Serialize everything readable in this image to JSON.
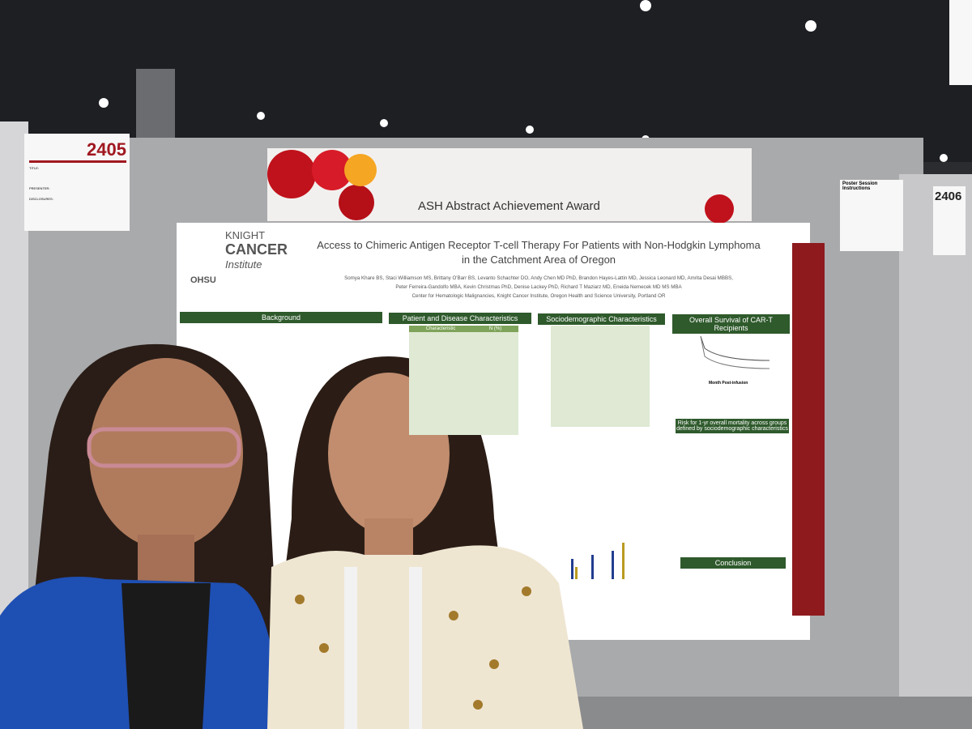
{
  "board_left": {
    "number": "2405",
    "labels": [
      "TITLE:",
      "PRESENTER:",
      "DISCLOSURES:"
    ]
  },
  "banner": {
    "title": "ASH Abstract Achievement Award"
  },
  "poster": {
    "logo": {
      "line1": "KNIGHT",
      "line2": "CANCER",
      "line3": "Institute",
      "org": "OHSU"
    },
    "title": [
      "Access to Chimeric Antigen Receptor T-cell Therapy For Patients with Non-Hodgkin Lymphoma",
      "in the Catchment Area of Oregon"
    ],
    "authors": [
      "Somya Khare BS, Staci Williamson MS, Brittany O'Barr BS, Levanto Schachter DO, Andy Chen MD PhD, Brandon Hayes-Lattin MD, Jessica Leonard MD, Amrita Desai MBBS,",
      "Peter Ferreira-Gandolfo MBA, Kevin Christmas PhD, Denise Lackey PhD, Richard T Maziarz MD, Eneida Nemecek MD MS MBA"
    ],
    "affiliation": "Center for Hematologic Malignancies, Knight Cancer Institute, Oregon Health and Science University, Portland OR",
    "sections": [
      "Background",
      "Patient and Disease Characteristics",
      "Sociodemographic Characteristics",
      "Overall Survival of CAR-T Recipients",
      "Risk for 1-yr overall mortality across groups defined by sociodemographic characteristics",
      "Conclusion"
    ],
    "table_header": [
      "Characteristic",
      "N (%)"
    ],
    "axis_label": "Month Post-infusion"
  },
  "board_right": {
    "number": "2406",
    "instructions": "Poster Session Instructions"
  }
}
